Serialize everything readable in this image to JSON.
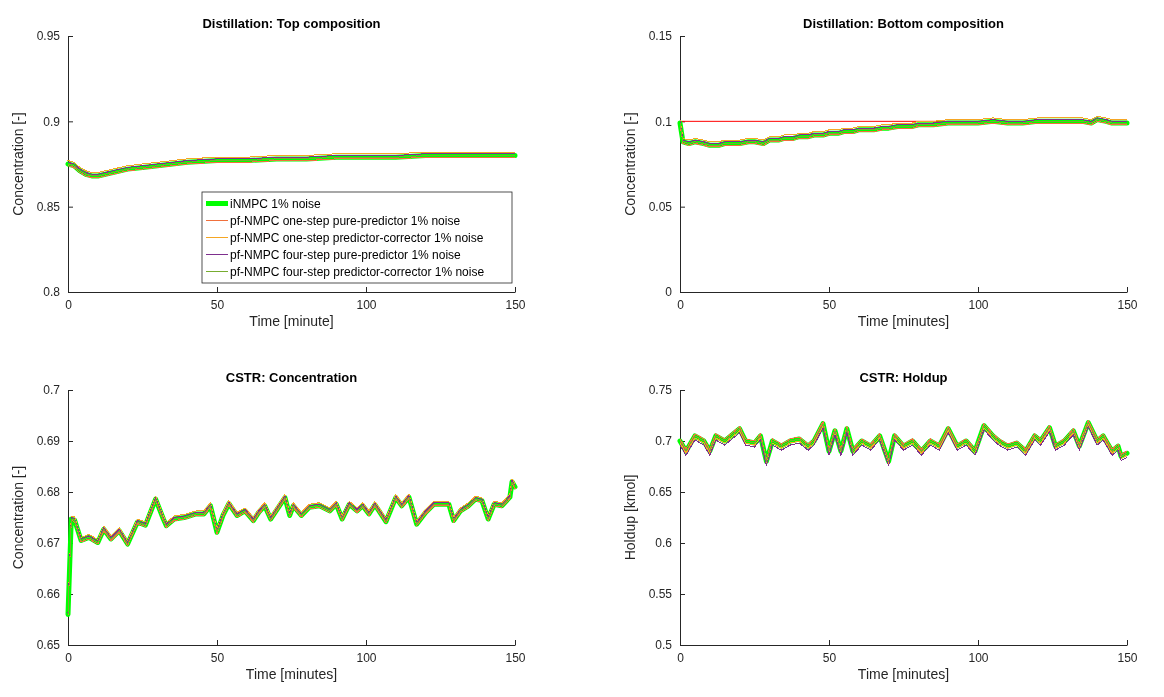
{
  "chart_data": [
    {
      "type": "line",
      "title": "Distillation: Top composition",
      "xlabel": "Time [minute]",
      "ylabel": "Concentration [-]",
      "xlim": [
        0,
        150
      ],
      "xticks": [
        0,
        50,
        100,
        150
      ],
      "ylim": [
        0.8,
        0.95
      ],
      "yticks": [
        0.8,
        0.85,
        0.9,
        0.95
      ],
      "legend": "bottom right",
      "x": [
        0,
        2,
        4,
        6,
        8,
        10,
        15,
        20,
        25,
        30,
        40,
        50,
        60,
        70,
        80,
        90,
        100,
        110,
        120,
        130,
        140,
        150
      ],
      "series": [
        {
          "name": "iNMPC 1% noise",
          "color": "#00ff00",
          "values": [
            0.875,
            0.874,
            0.871,
            0.869,
            0.868,
            0.868,
            0.87,
            0.872,
            0.873,
            0.874,
            0.876,
            0.877,
            0.877,
            0.878,
            0.878,
            0.879,
            0.879,
            0.879,
            0.88,
            0.88,
            0.88,
            0.88
          ]
        },
        {
          "name": "pf-NMPC one-step pure-predictor 1% noise",
          "color": "#f0703c",
          "values": [
            0.874,
            0.873,
            0.87,
            0.868,
            0.867,
            0.867,
            0.869,
            0.871,
            0.872,
            0.873,
            0.875,
            0.876,
            0.876,
            0.877,
            0.877,
            0.878,
            0.878,
            0.878,
            0.879,
            0.879,
            0.879,
            0.879
          ]
        },
        {
          "name": "pf-NMPC one-step predictor-corrector 1% noise",
          "color": "#f5a623",
          "values": [
            0.877,
            0.876,
            0.873,
            0.871,
            0.87,
            0.87,
            0.872,
            0.874,
            0.875,
            0.876,
            0.878,
            0.879,
            0.879,
            0.88,
            0.88,
            0.881,
            0.881,
            0.881,
            0.882,
            0.882,
            0.882,
            0.882
          ]
        },
        {
          "name": "pf-NMPC four-step pure-predictor 1% noise",
          "color": "#7e2f8e",
          "values": [
            0.876,
            0.875,
            0.872,
            0.87,
            0.869,
            0.869,
            0.871,
            0.873,
            0.874,
            0.875,
            0.877,
            0.878,
            0.878,
            0.879,
            0.879,
            0.88,
            0.88,
            0.88,
            0.881,
            0.881,
            0.881,
            0.881
          ]
        },
        {
          "name": "pf-NMPC four-step predictor-corrector 1% noise",
          "color": "#77ac30",
          "values": [
            0.875,
            0.874,
            0.871,
            0.869,
            0.868,
            0.868,
            0.87,
            0.872,
            0.873,
            0.874,
            0.876,
            0.877,
            0.877,
            0.878,
            0.878,
            0.879,
            0.879,
            0.879,
            0.88,
            0.88,
            0.88,
            0.88
          ]
        }
      ]
    },
    {
      "type": "line",
      "title": "Distillation: Bottom composition",
      "xlabel": "Time [minutes]",
      "ylabel": "Concentration [-]",
      "xlim": [
        0,
        150
      ],
      "xticks": [
        0,
        50,
        100,
        150
      ],
      "ylim": [
        0,
        0.15
      ],
      "yticks": [
        0,
        0.05,
        0.1,
        0.15
      ],
      "ref_lines": [
        {
          "axis": "y",
          "value": 0.1,
          "color": "#ff0000"
        }
      ],
      "x": [
        0,
        1,
        3,
        5,
        8,
        10,
        13,
        15,
        18,
        20,
        23,
        25,
        28,
        30,
        33,
        35,
        38,
        40,
        43,
        45,
        48,
        50,
        53,
        55,
        58,
        60,
        63,
        65,
        68,
        70,
        73,
        75,
        78,
        80,
        85,
        90,
        95,
        100,
        105,
        110,
        115,
        120,
        125,
        130,
        135,
        138,
        140,
        143,
        145,
        148,
        150
      ],
      "series": [
        {
          "color": "#00ff00",
          "values": [
            0.099,
            0.088,
            0.087,
            0.088,
            0.087,
            0.086,
            0.086,
            0.087,
            0.087,
            0.087,
            0.088,
            0.088,
            0.087,
            0.089,
            0.089,
            0.09,
            0.09,
            0.091,
            0.091,
            0.092,
            0.092,
            0.093,
            0.093,
            0.094,
            0.094,
            0.095,
            0.095,
            0.095,
            0.096,
            0.096,
            0.097,
            0.097,
            0.097,
            0.098,
            0.098,
            0.099,
            0.099,
            0.099,
            0.1,
            0.099,
            0.099,
            0.1,
            0.1,
            0.1,
            0.1,
            0.099,
            0.101,
            0.1,
            0.099,
            0.099,
            0.099
          ]
        },
        {
          "color": "#f0703c",
          "values": [
            0.098,
            0.087,
            0.086,
            0.087,
            0.086,
            0.085,
            0.085,
            0.086,
            0.086,
            0.086,
            0.087,
            0.087,
            0.086,
            0.088,
            0.088,
            0.089,
            0.089,
            0.09,
            0.09,
            0.091,
            0.091,
            0.092,
            0.092,
            0.093,
            0.093,
            0.094,
            0.094,
            0.094,
            0.095,
            0.095,
            0.096,
            0.096,
            0.096,
            0.097,
            0.097,
            0.098,
            0.098,
            0.098,
            0.099,
            0.098,
            0.098,
            0.099,
            0.099,
            0.099,
            0.099,
            0.098,
            0.1,
            0.099,
            0.098,
            0.098,
            0.098
          ]
        },
        {
          "color": "#f5a623",
          "values": [
            0.101,
            0.09,
            0.089,
            0.09,
            0.089,
            0.088,
            0.088,
            0.089,
            0.089,
            0.089,
            0.09,
            0.09,
            0.089,
            0.091,
            0.091,
            0.092,
            0.092,
            0.093,
            0.093,
            0.094,
            0.094,
            0.095,
            0.095,
            0.096,
            0.096,
            0.097,
            0.097,
            0.097,
            0.098,
            0.098,
            0.099,
            0.099,
            0.099,
            0.1,
            0.1,
            0.101,
            0.101,
            0.101,
            0.102,
            0.101,
            0.101,
            0.102,
            0.102,
            0.102,
            0.102,
            0.101,
            0.103,
            0.102,
            0.101,
            0.101,
            0.101
          ]
        },
        {
          "color": "#7e2f8e",
          "values": [
            0.1,
            0.089,
            0.088,
            0.089,
            0.088,
            0.087,
            0.087,
            0.088,
            0.088,
            0.088,
            0.089,
            0.089,
            0.088,
            0.09,
            0.09,
            0.091,
            0.091,
            0.092,
            0.092,
            0.093,
            0.093,
            0.094,
            0.094,
            0.095,
            0.095,
            0.096,
            0.096,
            0.096,
            0.097,
            0.097,
            0.098,
            0.098,
            0.098,
            0.099,
            0.099,
            0.1,
            0.1,
            0.1,
            0.101,
            0.1,
            0.1,
            0.101,
            0.101,
            0.101,
            0.101,
            0.1,
            0.102,
            0.101,
            0.1,
            0.1,
            0.1
          ]
        },
        {
          "color": "#77ac30",
          "values": [
            0.099,
            0.088,
            0.087,
            0.088,
            0.087,
            0.086,
            0.086,
            0.087,
            0.087,
            0.087,
            0.088,
            0.088,
            0.087,
            0.089,
            0.089,
            0.09,
            0.09,
            0.091,
            0.091,
            0.092,
            0.092,
            0.093,
            0.093,
            0.094,
            0.094,
            0.095,
            0.095,
            0.095,
            0.096,
            0.096,
            0.097,
            0.097,
            0.097,
            0.098,
            0.098,
            0.099,
            0.099,
            0.099,
            0.1,
            0.099,
            0.099,
            0.1,
            0.1,
            0.1,
            0.1,
            0.099,
            0.101,
            0.1,
            0.099,
            0.099,
            0.099
          ]
        }
      ]
    },
    {
      "type": "line",
      "title": "CSTR: Concentration",
      "xlabel": "Time [minutes]",
      "ylabel": "Concentration [-]",
      "xlim": [
        0,
        150
      ],
      "xticks": [
        0,
        50,
        100,
        150
      ],
      "ylim": [
        0.65,
        0.7
      ],
      "yticks": [
        0.65,
        0.66,
        0.67,
        0.68,
        0.69,
        0.7
      ],
      "x": [
        0,
        1.1,
        2.2,
        4.4,
        7,
        10,
        12,
        14.4,
        17.2,
        20,
        23.3,
        26,
        29.4,
        32,
        33,
        35.6,
        39,
        43,
        45.6,
        47.8,
        50,
        52,
        54,
        56.7,
        59.4,
        62.2,
        64,
        66,
        68,
        72.8,
        74.4,
        75.6,
        78.3,
        81,
        84.4,
        87.8,
        90,
        92,
        94.4,
        97,
        98.9,
        101,
        103,
        106.7,
        110,
        112,
        114.4,
        117,
        120,
        122.8,
        127.8,
        129.4,
        131.7,
        134.4,
        136.7,
        138.9,
        141,
        143,
        145.6,
        148.3,
        149,
        150
      ],
      "series": [
        {
          "color": "#00ff00",
          "values": [
            0.656,
            0.6747,
            0.6745,
            0.6705,
            0.6711,
            0.6701,
            0.6727,
            0.6708,
            0.6724,
            0.6698,
            0.6741,
            0.6735,
            0.6786,
            0.6747,
            0.6734,
            0.6747,
            0.675,
            0.6757,
            0.6757,
            0.6773,
            0.6721,
            0.6754,
            0.6777,
            0.6754,
            0.6763,
            0.6744,
            0.676,
            0.6773,
            0.6747,
            0.6789,
            0.6754,
            0.6773,
            0.6754,
            0.677,
            0.6773,
            0.6763,
            0.6776,
            0.6747,
            0.6776,
            0.6763,
            0.6773,
            0.6757,
            0.6775,
            0.6742,
            0.6789,
            0.6773,
            0.679,
            0.6737,
            0.676,
            0.6776,
            0.6776,
            0.6744,
            0.6763,
            0.6773,
            0.6786,
            0.6783,
            0.6747,
            0.6776,
            0.6773,
            0.679,
            0.682,
            0.681
          ]
        },
        {
          "color": "#f0703c",
          "values": [
            0.6557,
            0.6744,
            0.6742,
            0.6702,
            0.6708,
            0.6698,
            0.6724,
            0.6705,
            0.6721,
            0.6695,
            0.6738,
            0.6732,
            0.6783,
            0.6744,
            0.6731,
            0.6744,
            0.6747,
            0.6754,
            0.6754,
            0.677,
            0.6718,
            0.6751,
            0.6774,
            0.6751,
            0.676,
            0.6741,
            0.6757,
            0.677,
            0.6744,
            0.6786,
            0.6751,
            0.677,
            0.6751,
            0.6767,
            0.677,
            0.676,
            0.6773,
            0.6744,
            0.6773,
            0.676,
            0.677,
            0.6754,
            0.6772,
            0.6739,
            0.6786,
            0.677,
            0.6787,
            0.6734,
            0.6757,
            0.6773,
            0.6773,
            0.6741,
            0.676,
            0.677,
            0.6783,
            0.678,
            0.6744,
            0.6773,
            0.677,
            0.6787,
            0.6817,
            0.6807
          ]
        },
        {
          "color": "#f5a623",
          "values": [
            0.6566,
            0.6753,
            0.6751,
            0.6711,
            0.6717,
            0.6707,
            0.6733,
            0.6714,
            0.673,
            0.6704,
            0.6747,
            0.6741,
            0.6792,
            0.6753,
            0.674,
            0.6753,
            0.6756,
            0.6763,
            0.6763,
            0.6779,
            0.6727,
            0.676,
            0.6783,
            0.676,
            0.6769,
            0.675,
            0.6766,
            0.6779,
            0.6753,
            0.6795,
            0.676,
            0.6779,
            0.676,
            0.6776,
            0.6779,
            0.6769,
            0.6782,
            0.6753,
            0.6782,
            0.6769,
            0.6779,
            0.6763,
            0.6781,
            0.6748,
            0.6795,
            0.6779,
            0.6796,
            0.6743,
            0.6766,
            0.6782,
            0.6782,
            0.675,
            0.6769,
            0.6779,
            0.6792,
            0.6789,
            0.6753,
            0.6782,
            0.6779,
            0.6796,
            0.6826,
            0.6816
          ]
        },
        {
          "color": "#7e2f8e",
          "values": [
            0.6563,
            0.675,
            0.6748,
            0.6708,
            0.6714,
            0.6704,
            0.673,
            0.6711,
            0.6727,
            0.6701,
            0.6744,
            0.6738,
            0.6789,
            0.675,
            0.6737,
            0.675,
            0.6753,
            0.676,
            0.676,
            0.6776,
            0.6724,
            0.6757,
            0.678,
            0.6757,
            0.6766,
            0.6747,
            0.6763,
            0.6776,
            0.675,
            0.6792,
            0.6757,
            0.6776,
            0.6757,
            0.6773,
            0.6776,
            0.6766,
            0.6779,
            0.675,
            0.6779,
            0.6766,
            0.6776,
            0.676,
            0.6778,
            0.6745,
            0.6792,
            0.6776,
            0.6793,
            0.674,
            0.6763,
            0.6779,
            0.6779,
            0.6747,
            0.6766,
            0.6776,
            0.6789,
            0.6786,
            0.675,
            0.6779,
            0.6776,
            0.6793,
            0.6823,
            0.6813
          ]
        },
        {
          "color": "#77ac30",
          "values": [
            0.656,
            0.6747,
            0.6745,
            0.6705,
            0.6711,
            0.6701,
            0.6727,
            0.6708,
            0.6724,
            0.6698,
            0.6741,
            0.6735,
            0.6786,
            0.6747,
            0.6734,
            0.6747,
            0.675,
            0.6757,
            0.6757,
            0.6773,
            0.6721,
            0.6754,
            0.6777,
            0.6754,
            0.6763,
            0.6744,
            0.676,
            0.6773,
            0.6747,
            0.6789,
            0.6754,
            0.6773,
            0.6754,
            0.677,
            0.6773,
            0.6763,
            0.6776,
            0.6747,
            0.6776,
            0.6763,
            0.6773,
            0.6757,
            0.6775,
            0.6742,
            0.6789,
            0.6773,
            0.679,
            0.6737,
            0.676,
            0.6776,
            0.6776,
            0.6744,
            0.6763,
            0.6773,
            0.6786,
            0.6783,
            0.6747,
            0.6776,
            0.6773,
            0.679,
            0.682,
            0.681
          ]
        }
      ]
    },
    {
      "type": "line",
      "title": "CSTR: Holdup",
      "xlabel": "Time [minutes]",
      "ylabel": "Holdup [kmol]",
      "xlim": [
        0,
        150
      ],
      "xticks": [
        0,
        50,
        100,
        150
      ],
      "ylim": [
        0.5,
        0.75
      ],
      "yticks": [
        0.5,
        0.55,
        0.6,
        0.65,
        0.7,
        0.75
      ],
      "x": [
        0,
        2,
        5,
        8,
        10,
        12,
        15,
        20,
        22,
        25,
        27,
        29,
        31,
        34,
        37,
        40,
        43,
        45,
        48,
        50,
        52,
        54,
        56,
        58,
        61,
        64,
        67,
        70,
        72,
        75,
        78,
        81,
        84,
        87,
        90,
        93,
        96,
        99,
        102,
        105,
        107,
        110,
        113,
        116,
        119,
        121,
        124,
        126,
        129,
        132,
        134,
        137,
        140,
        142,
        145,
        147,
        148,
        150
      ],
      "series": [
        {
          "color": "#00ff00",
          "values": [
            0.7,
            0.69,
            0.705,
            0.7,
            0.69,
            0.705,
            0.7,
            0.712,
            0.7,
            0.698,
            0.705,
            0.68,
            0.7,
            0.695,
            0.7,
            0.702,
            0.695,
            0.7,
            0.717,
            0.69,
            0.71,
            0.69,
            0.712,
            0.69,
            0.7,
            0.695,
            0.705,
            0.68,
            0.705,
            0.695,
            0.7,
            0.69,
            0.7,
            0.695,
            0.712,
            0.695,
            0.7,
            0.69,
            0.715,
            0.705,
            0.7,
            0.695,
            0.698,
            0.69,
            0.705,
            0.7,
            0.713,
            0.695,
            0.7,
            0.71,
            0.695,
            0.718,
            0.7,
            0.705,
            0.69,
            0.695,
            0.685,
            0.688
          ]
        },
        {
          "color": "#f0703c",
          "values": [
            0.702,
            0.692,
            0.707,
            0.702,
            0.692,
            0.707,
            0.702,
            0.714,
            0.702,
            0.7,
            0.707,
            0.682,
            0.702,
            0.697,
            0.702,
            0.704,
            0.697,
            0.702,
            0.719,
            0.692,
            0.712,
            0.692,
            0.714,
            0.692,
            0.702,
            0.697,
            0.707,
            0.682,
            0.707,
            0.697,
            0.702,
            0.692,
            0.702,
            0.697,
            0.714,
            0.697,
            0.702,
            0.692,
            0.717,
            0.707,
            0.702,
            0.697,
            0.7,
            0.692,
            0.707,
            0.702,
            0.715,
            0.697,
            0.702,
            0.712,
            0.697,
            0.72,
            0.702,
            0.707,
            0.692,
            0.697,
            0.687,
            0.69
          ]
        },
        {
          "color": "#f5a623",
          "values": [
            0.698,
            0.688,
            0.703,
            0.698,
            0.688,
            0.703,
            0.698,
            0.71,
            0.698,
            0.696,
            0.703,
            0.678,
            0.698,
            0.693,
            0.698,
            0.7,
            0.693,
            0.698,
            0.715,
            0.688,
            0.708,
            0.688,
            0.71,
            0.688,
            0.698,
            0.693,
            0.703,
            0.678,
            0.703,
            0.693,
            0.698,
            0.688,
            0.698,
            0.693,
            0.71,
            0.693,
            0.698,
            0.688,
            0.713,
            0.703,
            0.698,
            0.693,
            0.696,
            0.688,
            0.703,
            0.698,
            0.711,
            0.693,
            0.698,
            0.708,
            0.693,
            0.716,
            0.698,
            0.703,
            0.688,
            0.693,
            0.683,
            0.686
          ]
        },
        {
          "color": "#7e2f8e",
          "values": [
            0.696,
            0.686,
            0.701,
            0.696,
            0.686,
            0.701,
            0.696,
            0.708,
            0.696,
            0.694,
            0.701,
            0.676,
            0.696,
            0.691,
            0.696,
            0.698,
            0.691,
            0.696,
            0.713,
            0.686,
            0.706,
            0.686,
            0.708,
            0.686,
            0.696,
            0.691,
            0.701,
            0.676,
            0.701,
            0.691,
            0.696,
            0.686,
            0.696,
            0.691,
            0.708,
            0.691,
            0.696,
            0.686,
            0.711,
            0.701,
            0.696,
            0.691,
            0.694,
            0.686,
            0.701,
            0.696,
            0.709,
            0.691,
            0.696,
            0.706,
            0.691,
            0.714,
            0.696,
            0.701,
            0.686,
            0.691,
            0.681,
            0.684
          ]
        },
        {
          "color": "#77ac30",
          "values": [
            0.7,
            0.69,
            0.705,
            0.7,
            0.69,
            0.705,
            0.7,
            0.712,
            0.7,
            0.698,
            0.705,
            0.68,
            0.7,
            0.695,
            0.7,
            0.702,
            0.695,
            0.7,
            0.717,
            0.69,
            0.71,
            0.69,
            0.712,
            0.69,
            0.7,
            0.695,
            0.705,
            0.68,
            0.705,
            0.695,
            0.7,
            0.69,
            0.7,
            0.695,
            0.712,
            0.695,
            0.7,
            0.69,
            0.715,
            0.705,
            0.7,
            0.695,
            0.698,
            0.69,
            0.705,
            0.7,
            0.713,
            0.695,
            0.7,
            0.71,
            0.695,
            0.718,
            0.7,
            0.705,
            0.69,
            0.695,
            0.685,
            0.688
          ]
        }
      ]
    }
  ]
}
